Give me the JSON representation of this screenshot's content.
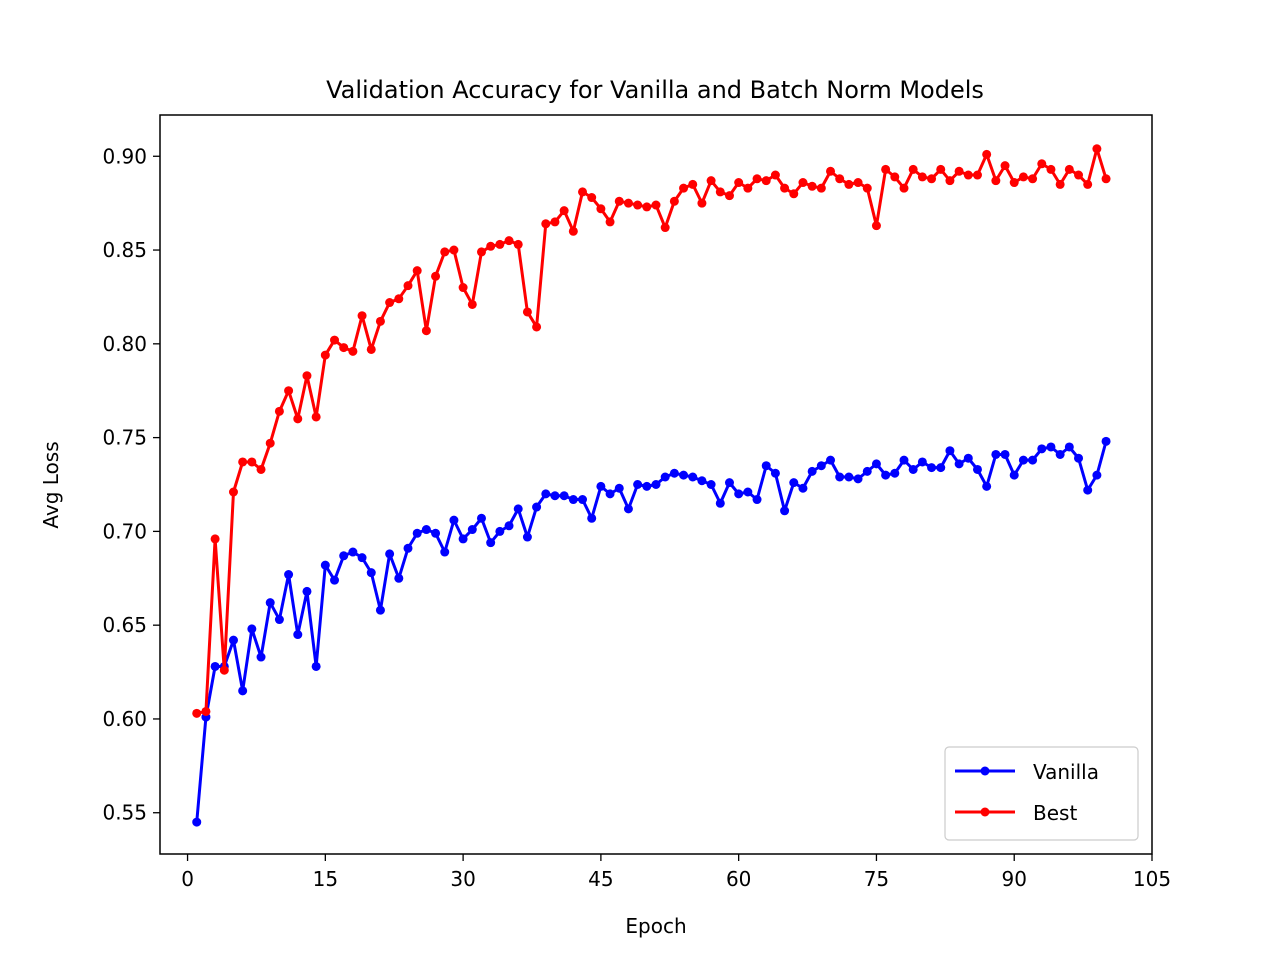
{
  "chart_data": {
    "type": "line",
    "title": "Validation Accuracy for Vanilla and Batch Norm Models",
    "xlabel": "Epoch",
    "ylabel": "Avg Loss",
    "xlim": [
      -3,
      105
    ],
    "ylim": [
      0.528,
      0.922
    ],
    "xticks": [
      0,
      15,
      30,
      45,
      60,
      75,
      90,
      105
    ],
    "yticks": [
      0.55,
      0.6,
      0.65,
      0.7,
      0.75,
      0.8,
      0.85,
      0.9
    ],
    "ytick_labels": [
      "0.55",
      "0.60",
      "0.65",
      "0.70",
      "0.75",
      "0.80",
      "0.85",
      "0.90"
    ],
    "grid": false,
    "legend_position": "lower-right",
    "x": [
      1,
      2,
      3,
      4,
      5,
      6,
      7,
      8,
      9,
      10,
      11,
      12,
      13,
      14,
      15,
      16,
      17,
      18,
      19,
      20,
      21,
      22,
      23,
      24,
      25,
      26,
      27,
      28,
      29,
      30,
      31,
      32,
      33,
      34,
      35,
      36,
      37,
      38,
      39,
      40,
      41,
      42,
      43,
      44,
      45,
      46,
      47,
      48,
      49,
      50,
      51,
      52,
      53,
      54,
      55,
      56,
      57,
      58,
      59,
      60,
      61,
      62,
      63,
      64,
      65,
      66,
      67,
      68,
      69,
      70,
      71,
      72,
      73,
      74,
      75,
      76,
      77,
      78,
      79,
      80,
      81,
      82,
      83,
      84,
      85,
      86,
      87,
      88,
      89,
      90,
      91,
      92,
      93,
      94,
      95,
      96,
      97,
      98,
      99,
      100
    ],
    "series": [
      {
        "name": "Vanilla",
        "color": "#0000ff",
        "values": [
          0.545,
          0.601,
          0.628,
          0.628,
          0.642,
          0.615,
          0.648,
          0.633,
          0.662,
          0.653,
          0.677,
          0.645,
          0.668,
          0.628,
          0.682,
          0.674,
          0.687,
          0.689,
          0.686,
          0.678,
          0.658,
          0.688,
          0.675,
          0.691,
          0.699,
          0.701,
          0.699,
          0.689,
          0.706,
          0.696,
          0.701,
          0.707,
          0.694,
          0.7,
          0.703,
          0.712,
          0.697,
          0.713,
          0.72,
          0.719,
          0.719,
          0.717,
          0.717,
          0.707,
          0.724,
          0.72,
          0.723,
          0.712,
          0.725,
          0.724,
          0.725,
          0.729,
          0.731,
          0.73,
          0.729,
          0.727,
          0.725,
          0.715,
          0.726,
          0.72,
          0.721,
          0.717,
          0.735,
          0.731,
          0.711,
          0.726,
          0.723,
          0.732,
          0.735,
          0.738,
          0.729,
          0.729,
          0.728,
          0.732,
          0.736,
          0.73,
          0.731,
          0.738,
          0.733,
          0.737,
          0.734,
          0.734,
          0.743,
          0.736,
          0.739,
          0.733,
          0.724,
          0.741,
          0.741,
          0.73,
          0.738,
          0.738,
          0.744,
          0.745,
          0.741,
          0.745,
          0.739,
          0.722,
          0.73,
          0.748
        ]
      },
      {
        "name": "Best",
        "color": "#ff0000",
        "values": [
          0.603,
          0.604,
          0.696,
          0.626,
          0.721,
          0.737,
          0.737,
          0.733,
          0.747,
          0.764,
          0.775,
          0.76,
          0.783,
          0.761,
          0.794,
          0.802,
          0.798,
          0.796,
          0.815,
          0.797,
          0.812,
          0.822,
          0.824,
          0.831,
          0.839,
          0.807,
          0.836,
          0.849,
          0.85,
          0.83,
          0.821,
          0.849,
          0.852,
          0.853,
          0.855,
          0.853,
          0.817,
          0.809,
          0.864,
          0.865,
          0.871,
          0.86,
          0.881,
          0.878,
          0.872,
          0.865,
          0.876,
          0.875,
          0.874,
          0.873,
          0.874,
          0.862,
          0.876,
          0.883,
          0.885,
          0.875,
          0.887,
          0.881,
          0.879,
          0.886,
          0.883,
          0.888,
          0.887,
          0.89,
          0.883,
          0.88,
          0.886,
          0.884,
          0.883,
          0.892,
          0.888,
          0.885,
          0.886,
          0.883,
          0.863,
          0.893,
          0.889,
          0.883,
          0.893,
          0.889,
          0.888,
          0.893,
          0.887,
          0.892,
          0.89,
          0.89,
          0.901,
          0.887,
          0.895,
          0.886,
          0.889,
          0.888,
          0.896,
          0.893,
          0.885,
          0.893,
          0.89,
          0.885,
          0.904,
          0.888
        ]
      }
    ]
  }
}
